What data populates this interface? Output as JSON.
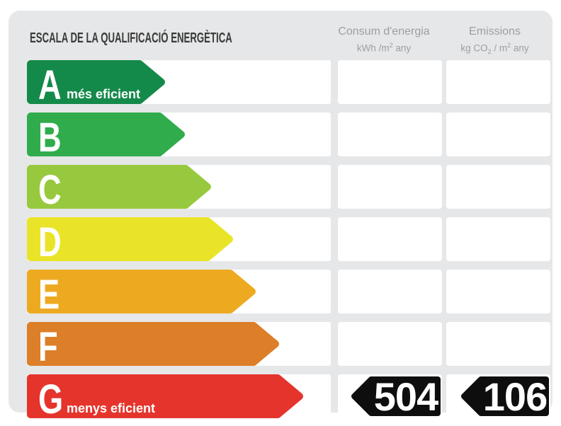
{
  "title": "ESCALA DE LA QUALIFICACIÓ ENERGÈTICA",
  "columns": {
    "consum": {
      "title": "Consum d'energia",
      "unit_pre": "kWh /m",
      "unit_sup": "2",
      "unit_post": " any"
    },
    "emissions": {
      "title": "Emissions",
      "unit_pre": "kg CO",
      "unit_sub": "2",
      "unit_mid": " / m",
      "unit_sup": "2",
      "unit_post": " any"
    }
  },
  "scale": {
    "rows": [
      {
        "letter": "A",
        "note": "més eficient",
        "color": "#148a4a",
        "arrow_width": 196
      },
      {
        "letter": "B",
        "note": "",
        "color": "#30ac4c",
        "arrow_width": 224
      },
      {
        "letter": "C",
        "note": "",
        "color": "#97c93e",
        "arrow_width": 261
      },
      {
        "letter": "D",
        "note": "",
        "color": "#eae428",
        "arrow_width": 292
      },
      {
        "letter": "E",
        "note": "",
        "color": "#edaa21",
        "arrow_width": 324
      },
      {
        "letter": "F",
        "note": "",
        "color": "#dd7e28",
        "arrow_width": 357
      },
      {
        "letter": "G",
        "note": "menys eficient",
        "color": "#e5342c",
        "arrow_width": 391,
        "consum_value": "504",
        "emissions_value": "106"
      }
    ]
  },
  "rating": {
    "letter": "G",
    "consum_value": "504",
    "emissions_value": "106"
  },
  "colors": {
    "panel_background": "#e6e7e8",
    "row_background": "#ffffff",
    "badge_background": "#0e0e0e",
    "title_text": "#3a3a3a",
    "header_text": "#9ba0a3"
  },
  "chart_data": {
    "type": "bar",
    "title": "ESCALA DE LA QUALIFICACIÓ ENERGÈTICA",
    "categories": [
      "A",
      "B",
      "C",
      "D",
      "E",
      "F",
      "G"
    ],
    "category_notes": {
      "A": "més eficient",
      "G": "menys eficient"
    },
    "bar_colors": [
      "#148a4a",
      "#30ac4c",
      "#97c93e",
      "#eae428",
      "#edaa21",
      "#dd7e28",
      "#e5342c"
    ],
    "bar_relative_lengths": [
      196,
      224,
      261,
      292,
      324,
      357,
      391
    ],
    "series": [
      {
        "name": "Consum d'energia (kWh/m2 any)",
        "values": [
          null,
          null,
          null,
          null,
          null,
          null,
          504
        ]
      },
      {
        "name": "Emissions (kg CO2/m2 any)",
        "values": [
          null,
          null,
          null,
          null,
          null,
          null,
          106
        ]
      }
    ],
    "rated_category": "G",
    "legend_position": "top",
    "grid": false
  }
}
